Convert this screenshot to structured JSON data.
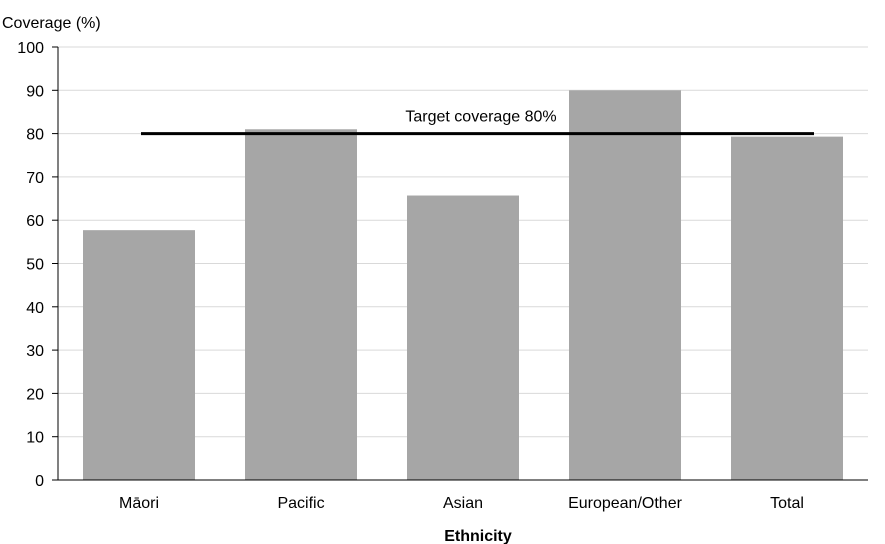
{
  "chart_data": {
    "type": "bar",
    "ylabel": "Coverage (%)",
    "xlabel": "Ethnicity",
    "categories": [
      "Māori",
      "Pacific",
      "Asian",
      "European/Other",
      "Total"
    ],
    "values": [
      57.7,
      81.0,
      65.7,
      90.0,
      79.3
    ],
    "ylim": [
      0,
      100
    ],
    "yticks": [
      0,
      10,
      20,
      30,
      40,
      50,
      60,
      70,
      80,
      90,
      100
    ],
    "grid": true,
    "bar_color": "#a6a6a6",
    "target": {
      "value": 80,
      "label": "Target coverage 80%",
      "color": "#000000"
    }
  }
}
